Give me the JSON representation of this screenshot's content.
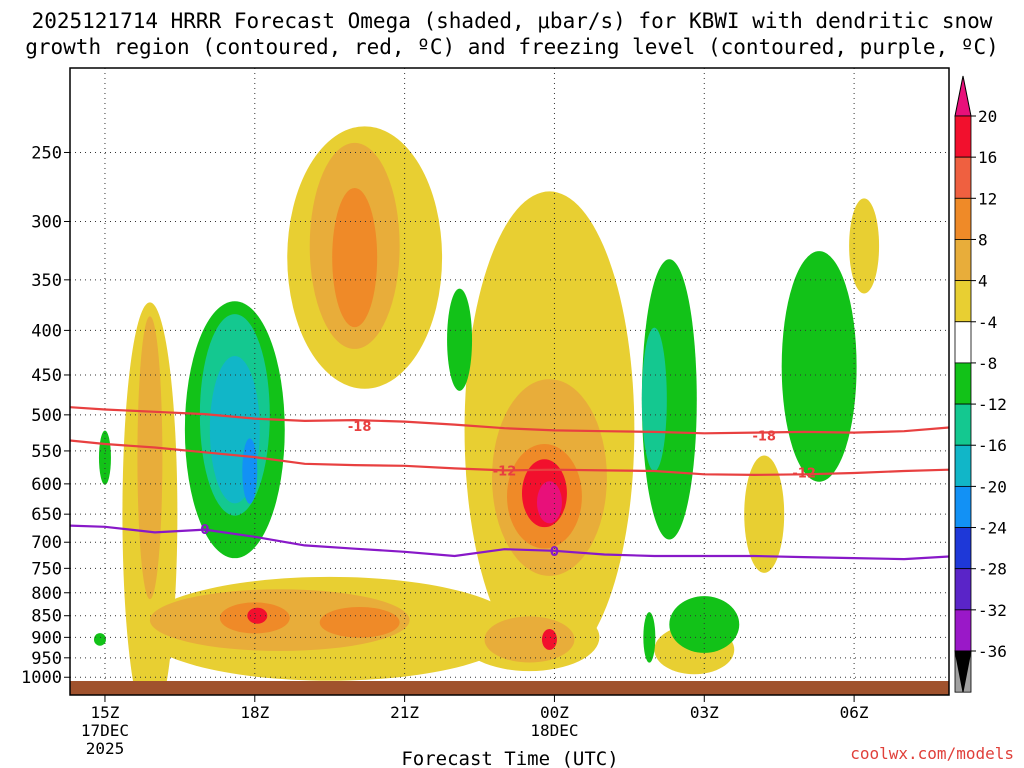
{
  "chart_data": {
    "type": "heatmap",
    "title_line1": "2025121714 HRRR Forecast Omega (shaded, μbar/s) for KBWI with dendritic snow",
    "title_line2": "growth region (contoured, red, ºC) and freezing level (contoured, purple, ºC)",
    "xlabel": "Forecast Time (UTC)",
    "ylabel": "",
    "x_ticks": [
      {
        "hour": 15,
        "label": "15Z",
        "date": "17DEC",
        "year": "2025"
      },
      {
        "hour": 18,
        "label": "18Z"
      },
      {
        "hour": 21,
        "label": "21Z"
      },
      {
        "hour": 24,
        "label": "00Z",
        "date": "18DEC"
      },
      {
        "hour": 27,
        "label": "03Z"
      },
      {
        "hour": 30,
        "label": "06Z"
      }
    ],
    "xlim": [
      14.3,
      31.9
    ],
    "y_ticks": [
      250,
      300,
      350,
      400,
      450,
      500,
      550,
      600,
      650,
      700,
      750,
      800,
      850,
      900,
      950,
      1000
    ],
    "ylim_hPa": [
      1010,
      200
    ],
    "colorbar": {
      "labels": [
        "20",
        "16",
        "12",
        "8",
        "4",
        "-4",
        "-8",
        "-12",
        "-16",
        "-20",
        "-24",
        "-28",
        "-32",
        "-36"
      ],
      "colors": [
        "#f2102d",
        "#ef6040",
        "#ef8a28",
        "#e8ad3a",
        "#e8cf32",
        "#ffffff",
        "#12c218",
        "#14c890",
        "#11b6c8",
        "#1291f5",
        "#1e38d8",
        "#5a24c8",
        "#9a18c8",
        "#a0a0a0"
      ],
      "top_color": "#e8107a",
      "bottom_color": "#000000"
    },
    "contours": [
      {
        "name": "dendritic-top",
        "label": "-18",
        "color": "#e84040",
        "points": [
          [
            14.3,
            490
          ],
          [
            15,
            493
          ],
          [
            16,
            496
          ],
          [
            17,
            499
          ],
          [
            18,
            505
          ],
          [
            19,
            508
          ],
          [
            20,
            507
          ],
          [
            21,
            509
          ],
          [
            22,
            513
          ],
          [
            23,
            518
          ],
          [
            24,
            521
          ],
          [
            25,
            522
          ],
          [
            26,
            523
          ],
          [
            27,
            525
          ],
          [
            28,
            524
          ],
          [
            29,
            523
          ],
          [
            30,
            524
          ],
          [
            31,
            522
          ],
          [
            31.9,
            517
          ]
        ]
      },
      {
        "name": "dendritic-bottom",
        "label": "-12",
        "color": "#e84040",
        "points": [
          [
            14.3,
            535
          ],
          [
            15,
            540
          ],
          [
            16,
            545
          ],
          [
            17,
            552
          ],
          [
            18,
            559
          ],
          [
            19,
            569
          ],
          [
            20,
            571
          ],
          [
            21,
            572
          ],
          [
            22,
            576
          ],
          [
            23,
            579
          ],
          [
            24,
            578
          ],
          [
            25,
            579
          ],
          [
            26,
            580
          ],
          [
            27,
            585
          ],
          [
            28,
            586
          ],
          [
            29,
            585
          ],
          [
            30,
            583
          ],
          [
            31,
            580
          ],
          [
            31.9,
            578
          ]
        ]
      },
      {
        "name": "freezing-level",
        "label": "0",
        "color": "#8818c8",
        "points": [
          [
            14.3,
            670
          ],
          [
            15,
            672
          ],
          [
            16,
            682
          ],
          [
            17,
            677
          ],
          [
            18,
            690
          ],
          [
            19,
            706
          ],
          [
            20,
            712
          ],
          [
            21,
            718
          ],
          [
            22,
            726
          ],
          [
            23,
            713
          ],
          [
            24,
            716
          ],
          [
            25,
            723
          ],
          [
            26,
            726
          ],
          [
            27,
            726
          ],
          [
            28,
            726
          ],
          [
            29,
            728
          ],
          [
            30,
            730
          ],
          [
            31,
            732
          ],
          [
            31.9,
            727
          ]
        ]
      }
    ],
    "contour_labels": [
      {
        "text": "-18",
        "hour": 20.1,
        "p": 515,
        "color": "#e84040"
      },
      {
        "text": "-18",
        "hour": 28.2,
        "p": 528,
        "color": "#e84040"
      },
      {
        "text": "-12",
        "hour": 29.0,
        "p": 582,
        "color": "#e84040"
      },
      {
        "text": "-12",
        "hour": 23.0,
        "p": 579,
        "color": "#e84040"
      },
      {
        "text": "0",
        "hour": 17.0,
        "p": 676,
        "color": "#8818c8"
      },
      {
        "text": "0",
        "hour": 24.0,
        "p": 716,
        "color": "#8818c8"
      }
    ],
    "omega_regions": [
      {
        "level": 4,
        "hour": 20.2,
        "p": 330,
        "rx": 1.55,
        "rp": 110
      },
      {
        "level": 8,
        "hour": 20.0,
        "p": 320,
        "rx": 0.9,
        "rp": 85
      },
      {
        "level": 12,
        "hour": 20.0,
        "p": 330,
        "rx": 0.45,
        "rp": 60
      },
      {
        "level": 4,
        "hour": 15.9,
        "p": 650,
        "rx": 0.55,
        "rp": 330
      },
      {
        "level": 8,
        "hour": 15.9,
        "p": 560,
        "rx": 0.25,
        "rp": 200
      },
      {
        "level": 4,
        "hour": 19.5,
        "p": 880,
        "rx": 3.8,
        "rp": 120
      },
      {
        "level": 8,
        "hour": 18.5,
        "p": 860,
        "rx": 2.6,
        "rp": 70
      },
      {
        "level": 12,
        "hour": 18.0,
        "p": 855,
        "rx": 0.7,
        "rp": 35
      },
      {
        "level": 16,
        "hour": 18.05,
        "p": 850,
        "rx": 0.2,
        "rp": 18
      },
      {
        "level": 12,
        "hour": 20.1,
        "p": 865,
        "rx": 0.8,
        "rp": 35
      },
      {
        "level": 4,
        "hour": 23.9,
        "p": 520,
        "rx": 1.7,
        "rp": 290
      },
      {
        "level": 8,
        "hour": 23.9,
        "p": 590,
        "rx": 1.15,
        "rp": 150
      },
      {
        "level": 12,
        "hour": 23.8,
        "p": 620,
        "rx": 0.75,
        "rp": 85
      },
      {
        "level": 16,
        "hour": 23.8,
        "p": 615,
        "rx": 0.45,
        "rp": 55
      },
      {
        "level": 20,
        "hour": 23.9,
        "p": 630,
        "rx": 0.25,
        "rp": 35
      },
      {
        "level": 4,
        "hour": 23.5,
        "p": 900,
        "rx": 1.4,
        "rp": 80
      },
      {
        "level": 8,
        "hour": 23.5,
        "p": 905,
        "rx": 0.9,
        "rp": 55
      },
      {
        "level": 16,
        "hour": 23.9,
        "p": 905,
        "rx": 0.15,
        "rp": 25
      },
      {
        "level": 4,
        "hour": 30.2,
        "p": 320,
        "rx": 0.3,
        "rp": 40
      },
      {
        "level": 4,
        "hour": 28.2,
        "p": 650,
        "rx": 0.4,
        "rp": 100
      },
      {
        "level": 4,
        "hour": 26.8,
        "p": 930,
        "rx": 0.8,
        "rp": 60
      },
      {
        "level": -4,
        "hour": 17.6,
        "p": 520,
        "rx": 1.0,
        "rp": 170
      },
      {
        "level": -8,
        "hour": 17.6,
        "p": 500,
        "rx": 0.7,
        "rp": 130
      },
      {
        "level": -12,
        "hour": 17.6,
        "p": 520,
        "rx": 0.5,
        "rp": 100
      },
      {
        "level": -16,
        "hour": 17.9,
        "p": 580,
        "rx": 0.15,
        "rp": 50
      },
      {
        "level": -4,
        "hour": 26.3,
        "p": 480,
        "rx": 0.55,
        "rp": 170
      },
      {
        "level": -8,
        "hour": 26.0,
        "p": 480,
        "rx": 0.25,
        "rp": 90
      },
      {
        "level": -4,
        "hour": 29.3,
        "p": 440,
        "rx": 0.75,
        "rp": 130
      },
      {
        "level": -4,
        "hour": 27.0,
        "p": 870,
        "rx": 0.7,
        "rp": 65
      },
      {
        "level": -4,
        "hour": 22.1,
        "p": 410,
        "rx": 0.25,
        "rp": 55
      },
      {
        "level": -4,
        "hour": 15.0,
        "p": 560,
        "rx": 0.12,
        "rp": 40
      },
      {
        "level": -4,
        "hour": 25.9,
        "p": 900,
        "rx": 0.12,
        "rp": 60
      },
      {
        "level": -4,
        "hour": 14.9,
        "p": 905,
        "rx": 0.12,
        "rp": 15
      }
    ]
  },
  "footer": "coolwx.com/models"
}
